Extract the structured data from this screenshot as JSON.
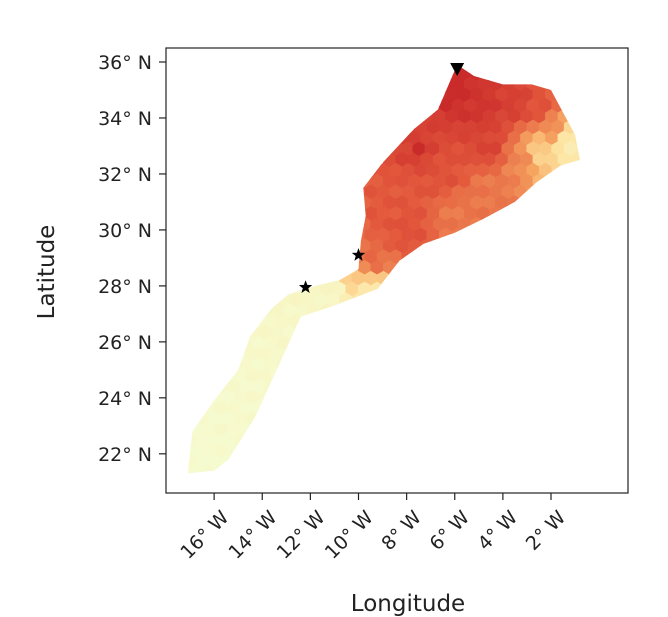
{
  "map": {
    "xlabel": "Longitude",
    "ylabel": "Latitude",
    "xlim": [
      -18.0,
      1.2
    ],
    "ylim": [
      20.6,
      36.5
    ],
    "x_ticks": [
      {
        "value": -16,
        "label": "16° W"
      },
      {
        "value": -14,
        "label": "14° W"
      },
      {
        "value": -12,
        "label": "12° W"
      },
      {
        "value": -10,
        "label": "10° W"
      },
      {
        "value": -8,
        "label": "8° W"
      },
      {
        "value": -6,
        "label": "6° W"
      },
      {
        "value": -4,
        "label": "4° W"
      },
      {
        "value": -2,
        "label": "2° W"
      }
    ],
    "y_ticks": [
      {
        "value": 22,
        "label": "22° N"
      },
      {
        "value": 24,
        "label": "24° N"
      },
      {
        "value": 26,
        "label": "26° N"
      },
      {
        "value": 28,
        "label": "28° N"
      },
      {
        "value": 30,
        "label": "30° N"
      },
      {
        "value": 32,
        "label": "32° N"
      },
      {
        "value": 34,
        "label": "34° N"
      },
      {
        "value": 36,
        "label": "36° N"
      }
    ],
    "colors": {
      "low": "#f6fbcf",
      "mid_low": "#fde3a0",
      "mid": "#f7a963",
      "high": "#e2573c",
      "max": "#c92a2a",
      "axis": "#222222",
      "marker": "#000000"
    },
    "region_polygon": [
      [
        -17.1,
        21.3
      ],
      [
        -16.9,
        22.8
      ],
      [
        -16.0,
        23.9
      ],
      [
        -15.0,
        25.0
      ],
      [
        -14.5,
        26.2
      ],
      [
        -13.6,
        27.2
      ],
      [
        -12.9,
        27.7
      ],
      [
        -11.8,
        28.0
      ],
      [
        -10.8,
        28.2
      ],
      [
        -10.0,
        28.6
      ],
      [
        -9.9,
        29.6
      ],
      [
        -9.7,
        30.5
      ],
      [
        -9.8,
        31.5
      ],
      [
        -9.0,
        32.4
      ],
      [
        -7.7,
        33.6
      ],
      [
        -6.7,
        34.3
      ],
      [
        -6.2,
        35.3
      ],
      [
        -5.9,
        35.9
      ],
      [
        -5.2,
        35.5
      ],
      [
        -4.0,
        35.2
      ],
      [
        -2.8,
        35.2
      ],
      [
        -2.0,
        35.0
      ],
      [
        -1.5,
        34.2
      ],
      [
        -1.0,
        33.4
      ],
      [
        -0.8,
        32.5
      ],
      [
        -1.6,
        32.3
      ],
      [
        -2.6,
        31.7
      ],
      [
        -3.5,
        31.0
      ],
      [
        -4.8,
        30.4
      ],
      [
        -6.0,
        29.9
      ],
      [
        -7.3,
        29.5
      ],
      [
        -8.3,
        28.9
      ],
      [
        -9.2,
        27.9
      ],
      [
        -11.0,
        27.3
      ],
      [
        -12.4,
        26.9
      ],
      [
        -13.4,
        25.0
      ],
      [
        -14.3,
        23.3
      ],
      [
        -15.4,
        21.8
      ],
      [
        -16.0,
        21.4
      ]
    ],
    "intensity_points": [
      [
        -6.0,
        35.2,
        1.0
      ],
      [
        -5.0,
        34.5,
        0.95
      ],
      [
        -3.5,
        34.5,
        0.9
      ],
      [
        -4.5,
        33.0,
        0.88
      ],
      [
        -7.5,
        32.9,
        0.9
      ],
      [
        -6.5,
        32.0,
        0.82
      ],
      [
        -8.0,
        31.2,
        0.8
      ],
      [
        -9.0,
        30.5,
        0.8
      ],
      [
        -8.0,
        30.0,
        0.82
      ],
      [
        -9.5,
        29.0,
        0.75
      ],
      [
        -6.0,
        30.5,
        0.7
      ],
      [
        -2.5,
        34.3,
        0.82
      ],
      [
        -2.0,
        33.5,
        0.62
      ],
      [
        -3.3,
        32.5,
        0.65
      ],
      [
        -4.5,
        31.5,
        0.7
      ],
      [
        -1.3,
        33.0,
        0.2
      ],
      [
        -2.4,
        32.8,
        0.38
      ],
      [
        -11.0,
        27.8,
        0.06
      ],
      [
        -12.0,
        27.4,
        0.05
      ],
      [
        -13.0,
        26.2,
        0.04
      ],
      [
        -13.8,
        25.0,
        0.03
      ],
      [
        -14.5,
        24.0,
        0.02
      ],
      [
        -15.5,
        22.8,
        0.01
      ],
      [
        -16.3,
        21.8,
        0.0
      ],
      [
        -9.5,
        27.6,
        0.2
      ],
      [
        -10.2,
        28.2,
        0.4
      ]
    ],
    "hot_spot": {
      "lon": -7.5,
      "lat": 32.9,
      "intensity": 1.0
    },
    "markers": [
      {
        "type": "star",
        "lon": -12.2,
        "lat": 27.95
      },
      {
        "type": "star",
        "lon": -10.0,
        "lat": 29.1
      },
      {
        "type": "triangle-down",
        "lon": -5.9,
        "lat": 35.75
      }
    ]
  }
}
